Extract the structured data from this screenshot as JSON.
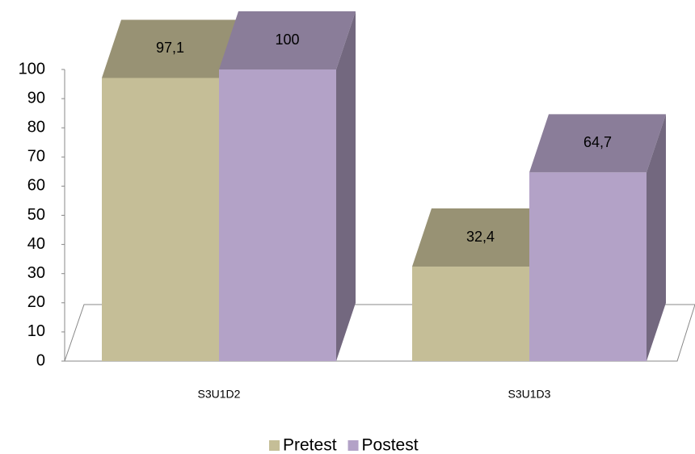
{
  "chart_data": {
    "type": "bar3d",
    "categories": [
      "S3U1D2",
      "S3U1D3"
    ],
    "series": [
      {
        "name": "Pretest",
        "color": "#c5be97",
        "values": [
          97.1,
          32.4
        ],
        "value_labels": [
          "97,1",
          "32,4"
        ]
      },
      {
        "name": "Postest",
        "color": "#b3a2c7",
        "values": [
          100,
          64.7
        ],
        "value_labels": [
          "100",
          "64,7"
        ]
      }
    ],
    "ylim": [
      0,
      100
    ],
    "yticks": [
      0,
      10,
      20,
      30,
      40,
      50,
      60,
      70,
      80,
      90,
      100
    ],
    "legend": "bottom"
  }
}
